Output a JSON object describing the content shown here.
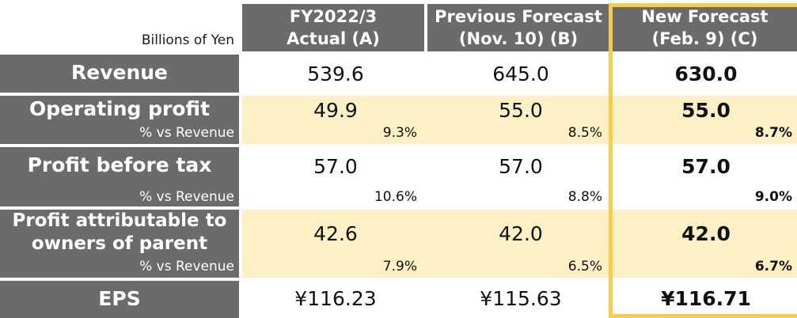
{
  "header": {
    "unit_label": "Billions of Yen",
    "columns": [
      {
        "line1": "FY2022/3",
        "line2": "Actual (A)"
      },
      {
        "line1": "Previous Forecast",
        "line2": "(Nov. 10) (B)"
      },
      {
        "line1": "New Forecast",
        "line2": "(Feb. 9) (C)"
      }
    ]
  },
  "rows": {
    "revenue": {
      "label": "Revenue",
      "values": [
        "539.6",
        "645.0",
        "630.0"
      ]
    },
    "operating_profit": {
      "label": "Operating profit",
      "sub_label": "% vs Revenue",
      "values": [
        "49.9",
        "55.0",
        "55.0"
      ],
      "pcts": [
        "9.3%",
        "8.5%",
        "8.7%"
      ]
    },
    "profit_before_tax": {
      "label": "Profit before tax",
      "sub_label": "% vs Revenue",
      "values": [
        "57.0",
        "57.0",
        "57.0"
      ],
      "pcts": [
        "10.6%",
        "8.8%",
        "9.0%"
      ]
    },
    "profit_attributable": {
      "label_line1": "Profit attributable to",
      "label_line2": "owners of parent",
      "sub_label": "% vs Revenue",
      "values": [
        "42.6",
        "42.0",
        "42.0"
      ],
      "pcts": [
        "7.9%",
        "6.5%",
        "6.7%"
      ]
    },
    "eps": {
      "label": "EPS",
      "values": [
        "¥116.23",
        "¥115.63",
        "¥116.71"
      ]
    }
  },
  "colors": {
    "header_bg": "#6b6b6b",
    "shaded_row_bg": "#fcf0c4",
    "highlight_border": "#f7cd4a"
  }
}
